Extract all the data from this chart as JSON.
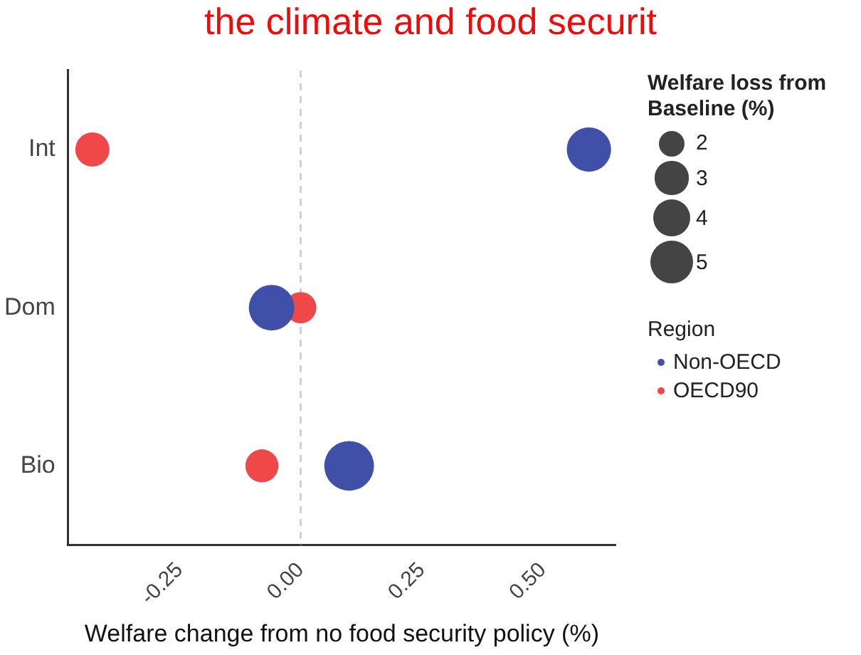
{
  "chart_data": {
    "type": "bubble",
    "title": "the climate and food securit",
    "orientation": "horizontal",
    "xlabel": "Welfare change from no food security policy (%)",
    "categories": [
      "Int",
      "Dom",
      "Bio"
    ],
    "series": [
      {
        "name": "Non-OECD",
        "color": "#4050a8",
        "values": [
          0.595,
          -0.06,
          0.1
        ],
        "sizes": [
          5.4,
          5.7,
          6.8
        ]
      },
      {
        "name": "OECD90",
        "color": "#f04848",
        "values": [
          -0.43,
          0,
          -0.08
        ],
        "sizes": [
          3.2,
          2.7,
          3.0
        ]
      }
    ],
    "xlim": [
      -0.48,
      0.65
    ],
    "xticks": [
      -0.25,
      {
        "value": 0,
        "label": "0.00"
      },
      0.25,
      {
        "value": 0.5,
        "label": "0.50"
      }
    ],
    "size_legend": [
      2,
      3,
      4,
      5
    ],
    "annotations": [
      "Welfare loss from Baseline (%)"
    ],
    "legend_title": "Region",
    "legend": "right",
    "ref_lines": [
      {
        "axis": "x",
        "value": 0,
        "color": "#d0d0d0",
        "line_style": "dashed"
      }
    ],
    "grid": false
  }
}
